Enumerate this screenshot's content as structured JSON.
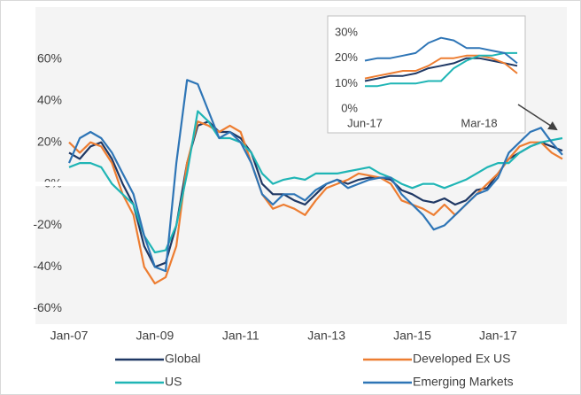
{
  "chart_data": [
    {
      "type": "line",
      "categories": [
        "Jan-07",
        null,
        null,
        null,
        null,
        null,
        null,
        null,
        "Jan-09",
        null,
        null,
        null,
        null,
        null,
        null,
        null,
        "Jan-11",
        null,
        null,
        null,
        null,
        null,
        null,
        null,
        "Jan-13",
        null,
        null,
        null,
        null,
        null,
        null,
        null,
        "Jan-15",
        null,
        null,
        null,
        null,
        null,
        null,
        null,
        "Jan-17",
        null,
        null,
        null,
        null,
        null,
        null
      ],
      "ylim": [
        -65,
        80
      ],
      "yticks": [
        {
          "value": -60,
          "label": "-60%"
        },
        {
          "value": -40,
          "label": "-40%"
        },
        {
          "value": -20,
          "label": "-20%"
        },
        {
          "value": 0,
          "label": "0%"
        },
        {
          "value": 20,
          "label": "20%"
        },
        {
          "value": 40,
          "label": "40%"
        },
        {
          "value": 60,
          "label": "60%"
        }
      ],
      "legend": "bottom",
      "series": [
        {
          "name": "Global",
          "color": "#1f3864",
          "values": [
            15,
            12,
            18,
            20,
            12,
            0,
            -10,
            -30,
            -40,
            -38,
            -20,
            10,
            28,
            30,
            25,
            25,
            22,
            15,
            0,
            -5,
            -5,
            -8,
            -10,
            -5,
            0,
            2,
            0,
            2,
            3,
            3,
            2,
            -3,
            -5,
            -8,
            -9,
            -7,
            -10,
            -8,
            -3,
            -2,
            5,
            12,
            15,
            18,
            20,
            18,
            16
          ]
        },
        {
          "name": "Developed Ex US",
          "color": "#ed7d31",
          "values": [
            20,
            15,
            20,
            18,
            10,
            -5,
            -15,
            -40,
            -48,
            -45,
            -30,
            10,
            30,
            28,
            25,
            28,
            25,
            10,
            -5,
            -12,
            -10,
            -12,
            -15,
            -8,
            -2,
            0,
            2,
            5,
            4,
            3,
            0,
            -8,
            -10,
            -12,
            -15,
            -10,
            -15,
            -10,
            -5,
            0,
            5,
            12,
            18,
            20,
            20,
            15,
            12
          ]
        },
        {
          "name": "US",
          "color": "#1fb5b5",
          "values": [
            8,
            10,
            10,
            8,
            0,
            -5,
            -10,
            -25,
            -33,
            -32,
            -20,
            5,
            35,
            30,
            22,
            22,
            20,
            15,
            5,
            0,
            2,
            3,
            2,
            5,
            5,
            5,
            6,
            7,
            8,
            5,
            3,
            0,
            -2,
            0,
            0,
            -2,
            0,
            2,
            5,
            8,
            10,
            10,
            15,
            18,
            20,
            21,
            22
          ]
        },
        {
          "name": "Emerging Markets",
          "color": "#2e75b6",
          "values": [
            10,
            22,
            25,
            22,
            15,
            5,
            -5,
            -25,
            -40,
            -42,
            10,
            50,
            48,
            35,
            22,
            25,
            20,
            10,
            -5,
            -10,
            -5,
            -5,
            -8,
            -3,
            0,
            2,
            -2,
            0,
            2,
            3,
            3,
            -5,
            -10,
            -15,
            -22,
            -20,
            -15,
            -10,
            -5,
            -3,
            3,
            15,
            20,
            25,
            27,
            20,
            14
          ]
        }
      ]
    },
    {
      "type": "line",
      "categories": [
        "Jun-17",
        null,
        null,
        null,
        null,
        null,
        null,
        null,
        null,
        "Mar-18",
        null,
        null,
        null
      ],
      "ylim": [
        -3,
        33
      ],
      "yticks": [
        {
          "value": 0,
          "label": "0%"
        },
        {
          "value": 10,
          "label": "10%"
        },
        {
          "value": 20,
          "label": "20%"
        },
        {
          "value": 30,
          "label": "30%"
        }
      ],
      "series": [
        {
          "color": "#1f3864",
          "values": [
            11,
            12,
            13,
            13,
            14,
            16,
            17,
            18,
            20,
            20,
            19,
            18,
            17
          ]
        },
        {
          "color": "#ed7d31",
          "values": [
            12,
            13,
            14,
            15,
            15,
            17,
            20,
            20,
            21,
            21,
            20,
            18,
            14
          ]
        },
        {
          "color": "#1fb5b5",
          "values": [
            9,
            9,
            10,
            10,
            10,
            11,
            11,
            16,
            19,
            21,
            21,
            22,
            22
          ]
        },
        {
          "color": "#2e75b6",
          "values": [
            19,
            20,
            20,
            21,
            22,
            26,
            28,
            27,
            24,
            24,
            23,
            22,
            18
          ]
        }
      ]
    }
  ]
}
